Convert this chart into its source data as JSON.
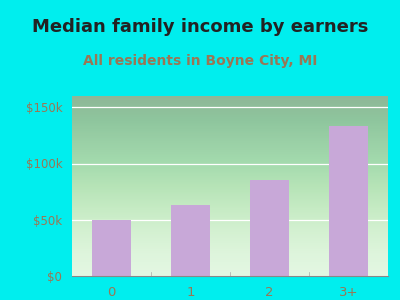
{
  "title": "Median family income by earners",
  "subtitle": "All residents in Boyne City, MI",
  "categories": [
    "0",
    "1",
    "2",
    "3+"
  ],
  "values": [
    50000,
    63000,
    85000,
    133000
  ],
  "bar_color": "#c8a8d8",
  "title_fontsize": 13,
  "subtitle_fontsize": 10,
  "title_color": "#222222",
  "subtitle_color": "#997755",
  "tick_label_color": "#997755",
  "outer_bg_color": "#00eeee",
  "ylim": [
    0,
    160000
  ],
  "yticks": [
    0,
    50000,
    100000,
    150000
  ],
  "ytick_labels": [
    "$0",
    "$50k",
    "$100k",
    "$150k"
  ]
}
